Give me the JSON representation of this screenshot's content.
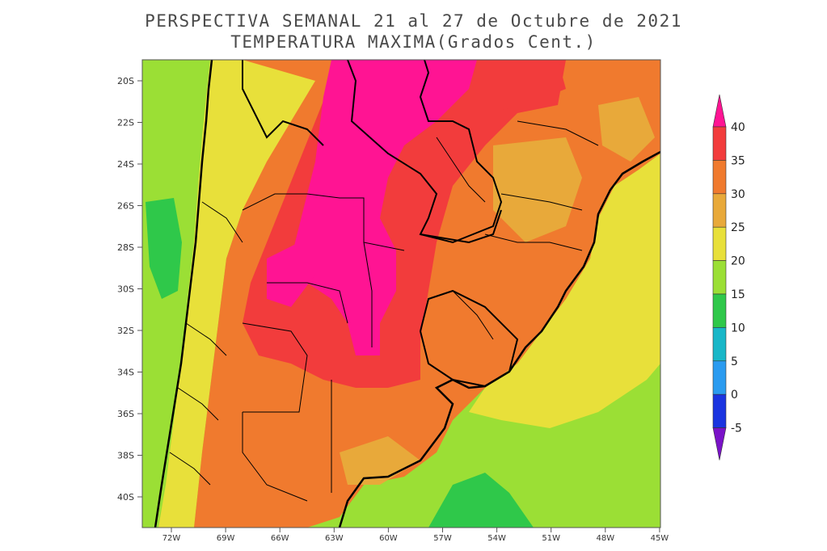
{
  "title": {
    "line1": "PERSPECTIVA SEMANAL  21 al 27 de Octubre de 2021",
    "line2": "TEMPERATURA MAXIMA(Grados Cent.)"
  },
  "map": {
    "lat_labels": [
      "20S",
      "22S",
      "24S",
      "26S",
      "28S",
      "30S",
      "32S",
      "34S",
      "36S",
      "38S",
      "40S"
    ],
    "lon_labels": [
      "72W",
      "69W",
      "66W",
      "63W",
      "60W",
      "57W",
      "54W",
      "51W",
      "48W",
      "45W"
    ]
  },
  "colorbar": {
    "labels": [
      "40",
      "35",
      "30",
      "25",
      "20",
      "15",
      "10",
      "5",
      "0",
      "-5"
    ],
    "colors": [
      "#ff1493",
      "#f23c3c",
      "#f07a2e",
      "#e8a93a",
      "#e8e03a",
      "#9bdf35",
      "#2fc84a",
      "#18b7c8",
      "#2a9bf0",
      "#1a34e0",
      "#7a12c8"
    ]
  }
}
